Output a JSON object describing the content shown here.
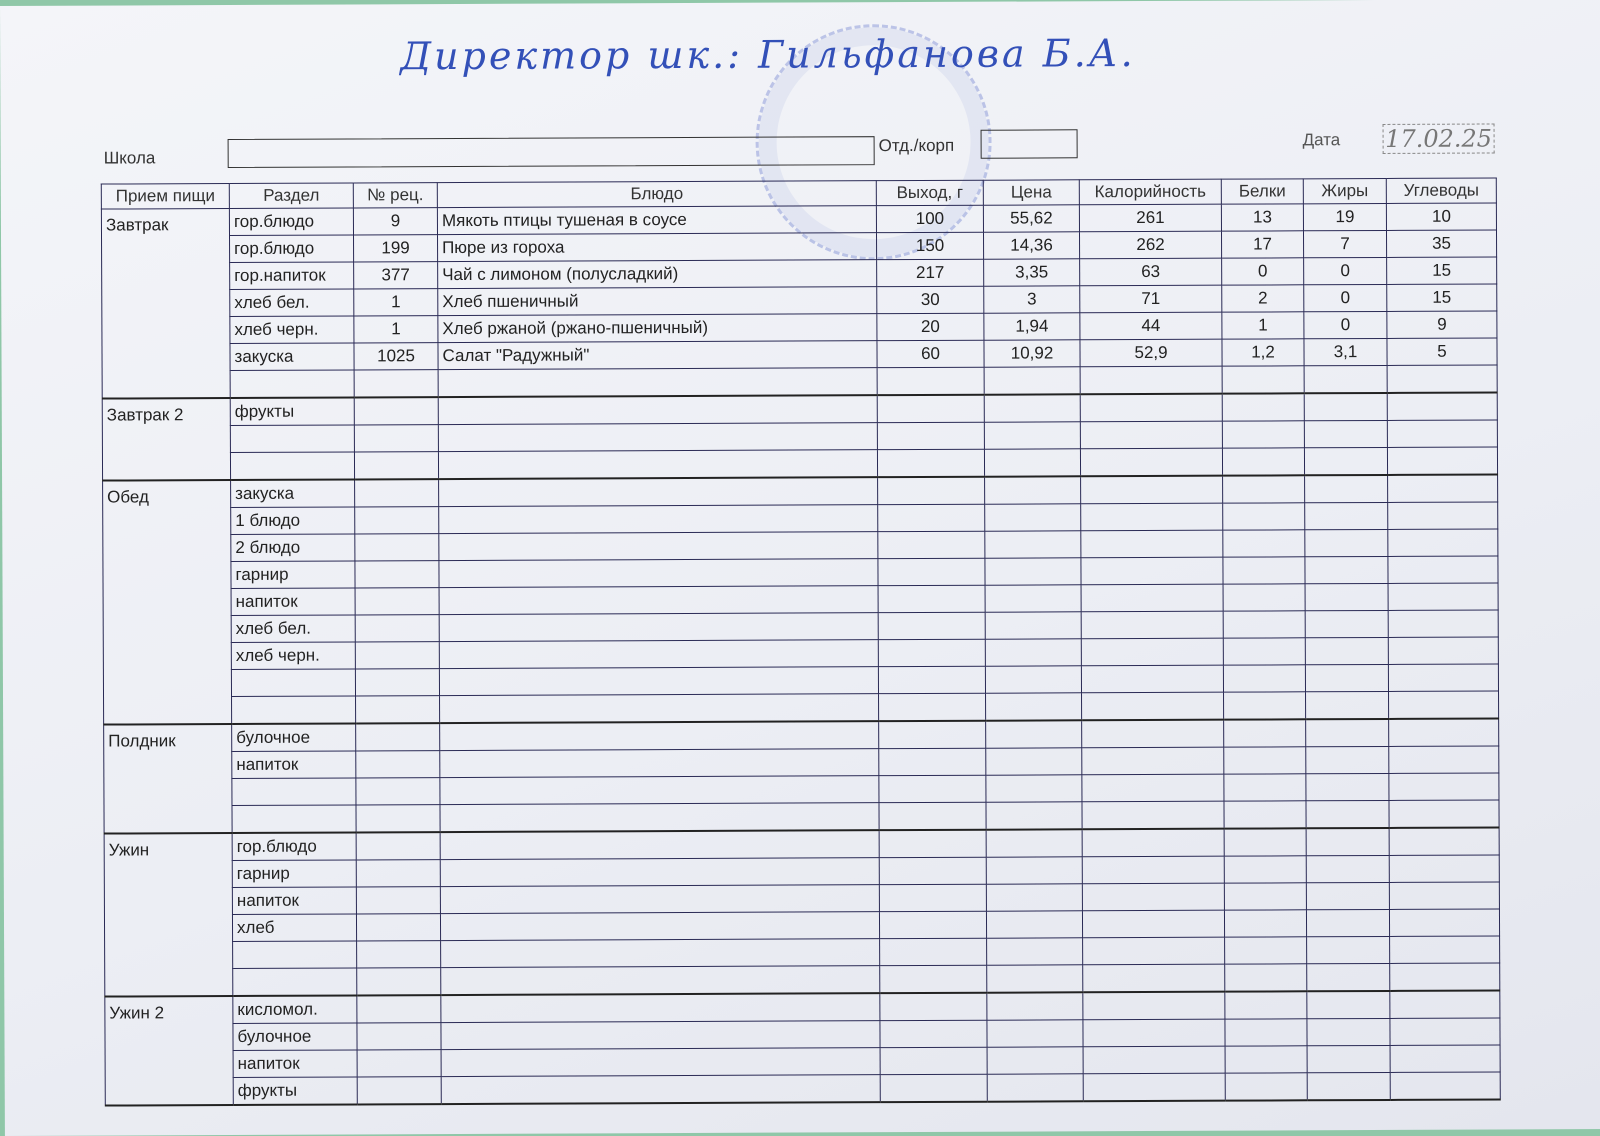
{
  "header": {
    "handwritten_note": "Директор шк.: Гильфанова Б.А.",
    "school_label": "Школа",
    "school_value": "",
    "dept_label": "Отд./корп",
    "dept_value": "",
    "date_label": "Дата",
    "date_value": "17.02.25"
  },
  "columns": [
    "Прием пищи",
    "Раздел",
    "№ рец.",
    "Блюдо",
    "Выход, г",
    "Цена",
    "Калорийность",
    "Белки",
    "Жиры",
    "Углеводы"
  ],
  "meals": [
    {
      "name": "Завтрак",
      "rows": [
        [
          "гор.блюдо",
          "9",
          "Мякоть птицы тушеная в соусе",
          "100",
          "55,62",
          "261",
          "13",
          "19",
          "10"
        ],
        [
          "гор.блюдо",
          "199",
          "Пюре из гороха",
          "150",
          "14,36",
          "262",
          "17",
          "7",
          "35"
        ],
        [
          "гор.напиток",
          "377",
          "Чай с лимоном (полусладкий)",
          "217",
          "3,35",
          "63",
          "0",
          "0",
          "15"
        ],
        [
          "хлеб бел.",
          "1",
          "Хлеб пшеничный",
          "30",
          "3",
          "71",
          "2",
          "0",
          "15"
        ],
        [
          "хлеб черн.",
          "1",
          "Хлеб ржаной (ржано-пшеничный)",
          "20",
          "1,94",
          "44",
          "1",
          "0",
          "9"
        ],
        [
          "закуска",
          "1025",
          "Салат \"Радужный\"",
          "60",
          "10,92",
          "52,9",
          "1,2",
          "3,1",
          "5"
        ],
        [
          "",
          "",
          "",
          "",
          "",
          "",
          "",
          "",
          ""
        ]
      ]
    },
    {
      "name": "Завтрак 2",
      "rows": [
        [
          "фрукты"
        ],
        [
          ""
        ],
        [
          ""
        ]
      ]
    },
    {
      "name": "Обед",
      "rows": [
        [
          "закуска"
        ],
        [
          "1 блюдо"
        ],
        [
          "2 блюдо"
        ],
        [
          "гарнир"
        ],
        [
          "напиток"
        ],
        [
          "хлеб бел."
        ],
        [
          "хлеб черн."
        ],
        [
          ""
        ],
        [
          ""
        ]
      ]
    },
    {
      "name": "Полдник",
      "rows": [
        [
          "булочное"
        ],
        [
          "напиток"
        ],
        [
          ""
        ],
        [
          ""
        ]
      ]
    },
    {
      "name": "Ужин",
      "rows": [
        [
          "гор.блюдо"
        ],
        [
          "гарнир"
        ],
        [
          "напиток"
        ],
        [
          "хлеб"
        ],
        [
          ""
        ],
        [
          ""
        ]
      ]
    },
    {
      "name": "Ужин 2",
      "rows": [
        [
          "кисломол."
        ],
        [
          "булочное"
        ],
        [
          "напиток"
        ],
        [
          "фрукты"
        ]
      ]
    }
  ]
}
